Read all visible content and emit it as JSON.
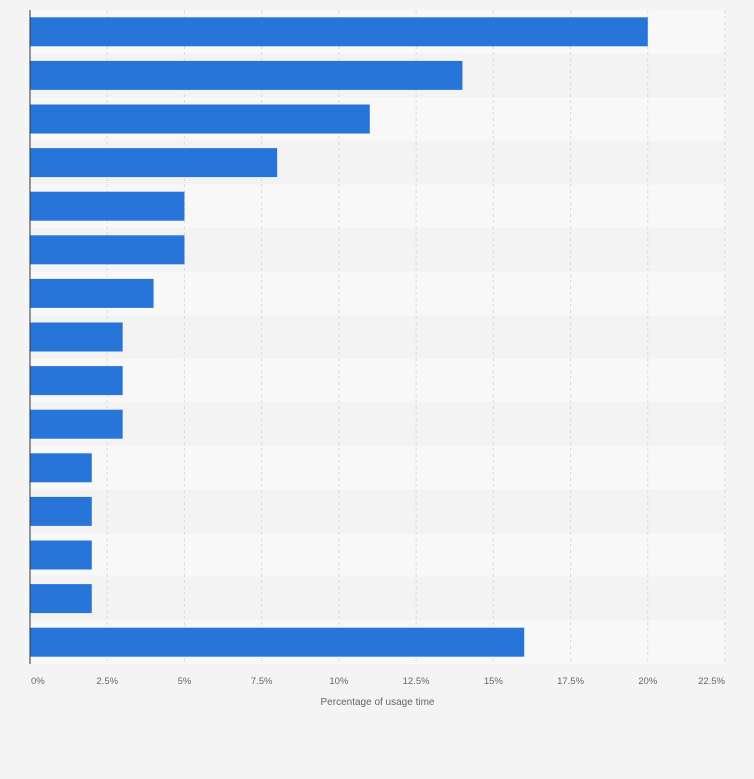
{
  "chart_data": {
    "type": "bar",
    "orientation": "horizontal",
    "categories": [
      "",
      "",
      "",
      "",
      "",
      "",
      "",
      "",
      "",
      "",
      "",
      "",
      "",
      "",
      ""
    ],
    "values": [
      20,
      14,
      11,
      8,
      5,
      5,
      4,
      3,
      3,
      3,
      2,
      2,
      2,
      2,
      16
    ],
    "title": "",
    "xlabel": "Percentage of usage time",
    "ylabel": "",
    "xlim": [
      0,
      22.5
    ],
    "x_ticks": [
      0,
      2.5,
      5,
      7.5,
      10,
      12.5,
      15,
      17.5,
      20,
      22.5
    ],
    "x_tick_labels": [
      "0%",
      "2.5%",
      "5%",
      "7.5%",
      "10%",
      "12.5%",
      "15%",
      "17.5%",
      "20%",
      "22.5%"
    ],
    "grid": true,
    "legend": "none",
    "colors": {
      "bar": "#2875d9",
      "band_light": "#f8f8f8",
      "band_dark": "#f3f3f3",
      "gridline": "#dcdcdc",
      "axis": "#333333",
      "background": "#f4f4f4"
    }
  }
}
